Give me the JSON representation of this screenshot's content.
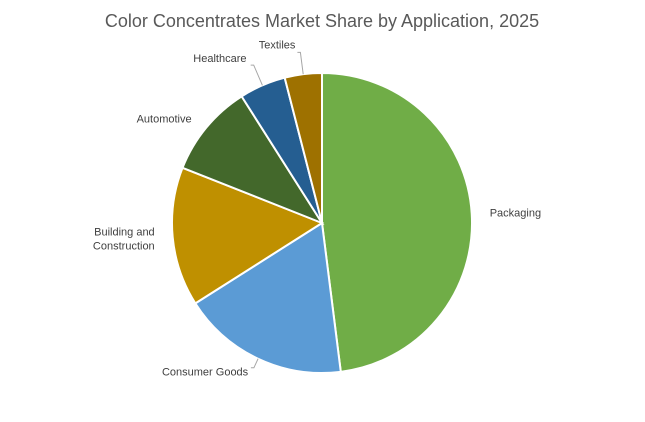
{
  "chart_data": {
    "type": "pie",
    "title": "Color Concentrates Market Share by Application, 2025",
    "series": [
      {
        "values": [
          48,
          18,
          15,
          10,
          5,
          4
        ]
      }
    ],
    "categories": [
      "Packaging",
      "Consumer Goods",
      "Building and Construction",
      "Automotive",
      "Healthcare",
      "Textiles"
    ],
    "labels": [
      "Packaging",
      "Consumer Goods",
      "Building and\nConstruction",
      "Automotive",
      "Healthcare",
      "Textiles"
    ],
    "colors": [
      "#70ad47",
      "#5b9bd5",
      "#bf9000",
      "#43682b",
      "#255e91",
      "#9e7100"
    ],
    "legend": "none",
    "start_angle_deg": 0,
    "direction": "clockwise"
  }
}
